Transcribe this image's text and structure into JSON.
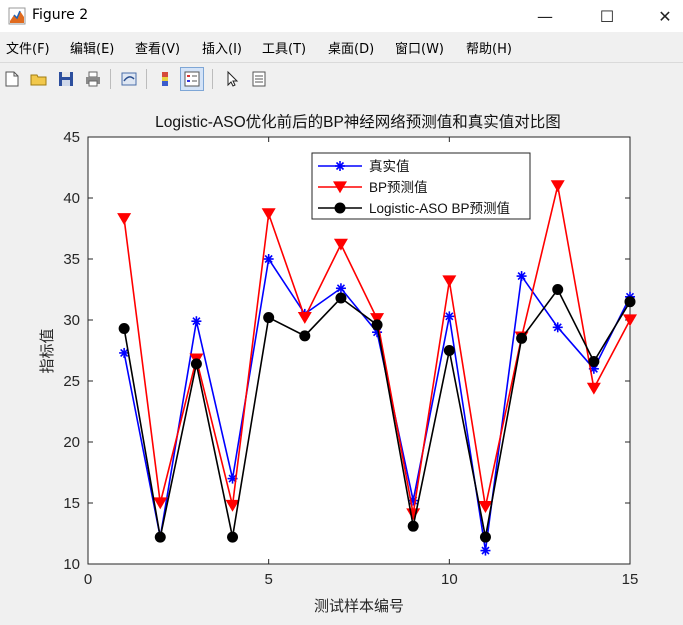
{
  "window": {
    "title": "Figure 2",
    "minimize": "—",
    "maximize": "☐",
    "close": "✕"
  },
  "menu": [
    "文件(F)",
    "编辑(E)",
    "查看(V)",
    "插入(I)",
    "工具(T)",
    "桌面(D)",
    "窗口(W)",
    "帮助(H)"
  ],
  "toolbar": {
    "icons": [
      "new-figure-icon",
      "open-file-icon",
      "save-icon",
      "print-icon",
      "link-plot-icon",
      "insert-colorbar-icon",
      "insert-legend-icon",
      "pointer-icon",
      "property-inspector-icon"
    ]
  },
  "chart_data": {
    "type": "line",
    "title": "Logistic-ASO优化前后的BP神经网络预测值和真实值对比图",
    "xlabel": "测试样本编号",
    "ylabel": "指标值",
    "xlim": [
      0,
      15
    ],
    "ylim": [
      10,
      45
    ],
    "xticks": [
      0,
      5,
      10,
      15
    ],
    "yticks": [
      10,
      15,
      20,
      25,
      30,
      35,
      40,
      45
    ],
    "grid": false,
    "legend_position": "top-center",
    "x": [
      1,
      2,
      3,
      4,
      5,
      6,
      7,
      8,
      9,
      10,
      11,
      12,
      13,
      14,
      15
    ],
    "series": [
      {
        "name": "真实值",
        "color": "#0000ff",
        "marker": "asterisk",
        "values": [
          27.3,
          12.2,
          29.9,
          17.0,
          35.0,
          30.5,
          32.6,
          29.0,
          15.2,
          30.3,
          11.1,
          33.6,
          29.4,
          26.0,
          31.9
        ]
      },
      {
        "name": "BP预测值",
        "color": "#ff0000",
        "marker": "triangle-down",
        "values": [
          38.3,
          15.0,
          26.8,
          14.8,
          38.7,
          30.2,
          36.2,
          30.1,
          14.1,
          33.2,
          14.7,
          28.6,
          41.0,
          24.4,
          30.0
        ]
      },
      {
        "name": "Logistic-ASO BP预测值",
        "color": "#000000",
        "marker": "circle",
        "values": [
          29.3,
          12.2,
          26.4,
          12.2,
          30.2,
          28.7,
          31.8,
          29.6,
          13.1,
          27.5,
          12.2,
          28.5,
          32.5,
          26.6,
          31.5
        ]
      }
    ]
  }
}
